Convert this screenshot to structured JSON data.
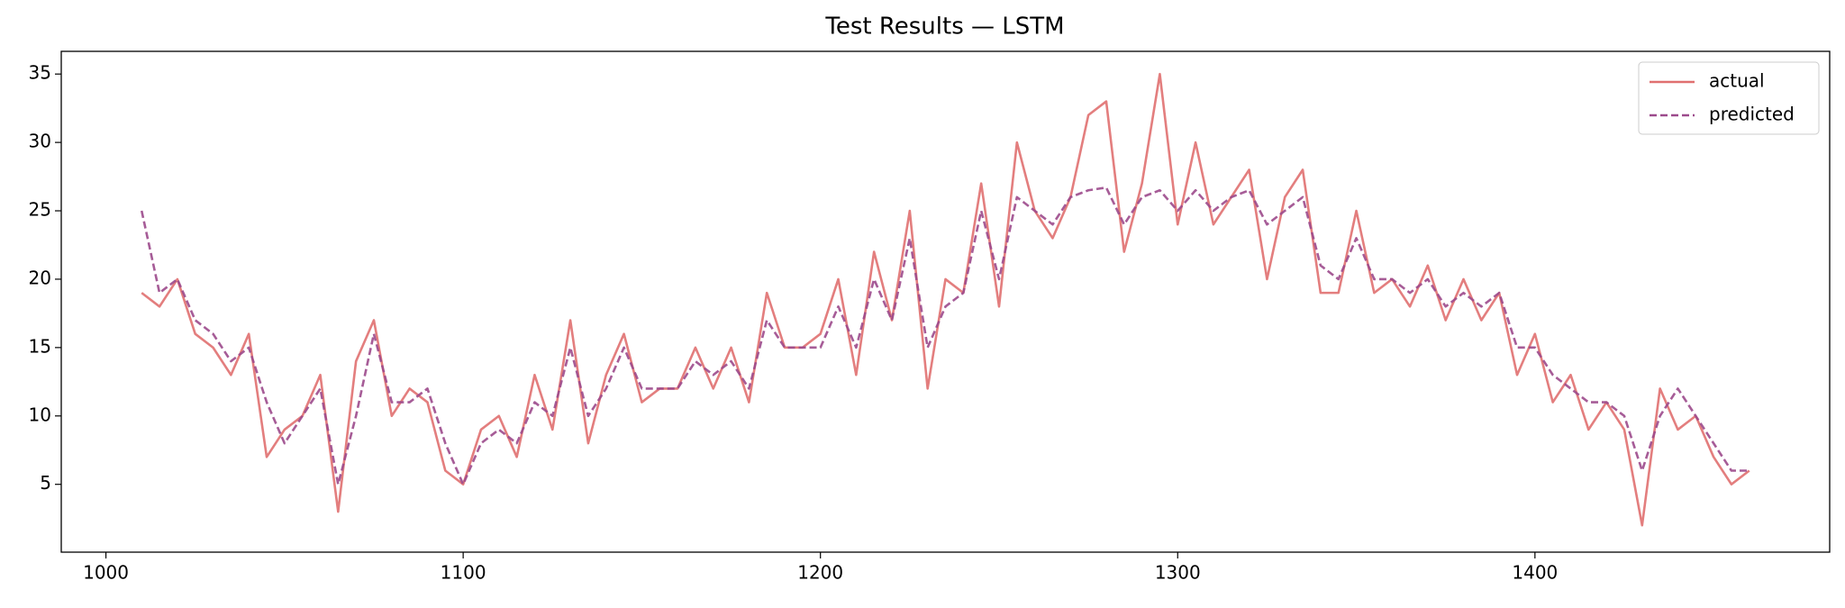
{
  "chart_data": {
    "type": "line",
    "title": "Test Results — LSTM",
    "x": [
      1010,
      1015,
      1020,
      1025,
      1030,
      1035,
      1040,
      1045,
      1050,
      1055,
      1060,
      1065,
      1070,
      1075,
      1080,
      1085,
      1090,
      1095,
      1100,
      1105,
      1110,
      1115,
      1120,
      1125,
      1130,
      1135,
      1140,
      1145,
      1150,
      1155,
      1160,
      1165,
      1170,
      1175,
      1180,
      1185,
      1190,
      1195,
      1200,
      1205,
      1210,
      1215,
      1220,
      1225,
      1230,
      1235,
      1240,
      1245,
      1250,
      1255,
      1260,
      1265,
      1270,
      1275,
      1280,
      1285,
      1290,
      1295,
      1300,
      1305,
      1310,
      1315,
      1320,
      1325,
      1330,
      1335,
      1340,
      1345,
      1350,
      1355,
      1360,
      1365,
      1370,
      1375,
      1380,
      1385,
      1390,
      1395,
      1400,
      1405,
      1410,
      1415,
      1420,
      1425,
      1430,
      1435,
      1440,
      1445,
      1450,
      1455,
      1460
    ],
    "series": [
      {
        "name": "actual",
        "color": "#e07070",
        "linestyle": "solid",
        "values": [
          19,
          18,
          20,
          16,
          15,
          13,
          16,
          7,
          9,
          10,
          13,
          3,
          14,
          17,
          10,
          12,
          11,
          6,
          5,
          9,
          10,
          7,
          13,
          9,
          17,
          8,
          13,
          16,
          11,
          12,
          12,
          15,
          12,
          15,
          11,
          19,
          15,
          15,
          16,
          20,
          13,
          22,
          17,
          25,
          12,
          20,
          19,
          27,
          18,
          30,
          25,
          23,
          26,
          32,
          33,
          22,
          27,
          35,
          24,
          30,
          24,
          26,
          28,
          20,
          26,
          28,
          19,
          19,
          25,
          19,
          20,
          18,
          21,
          17,
          20,
          17,
          19,
          13,
          16,
          11,
          13,
          9,
          11,
          9,
          2,
          12,
          9,
          10,
          7,
          5,
          6
        ]
      },
      {
        "name": "predicted",
        "color": "#9c4a8c",
        "linestyle": "dashed",
        "values": [
          25,
          19,
          20,
          17,
          16,
          14,
          15,
          11,
          8,
          10,
          12,
          5,
          10,
          16,
          11,
          11,
          12,
          8,
          5,
          8,
          9,
          8,
          11,
          10,
          15,
          10,
          12,
          15,
          12,
          12,
          12,
          14,
          13,
          14,
          12,
          17,
          15,
          15,
          15,
          18,
          15,
          20,
          17,
          23,
          15,
          18,
          19,
          25,
          20,
          26,
          25,
          24,
          26,
          26.5,
          26.7,
          24,
          26,
          26.5,
          25,
          26.5,
          25,
          26,
          26.5,
          24,
          25,
          26,
          21,
          20,
          23,
          20,
          20,
          19,
          20,
          18,
          19,
          18,
          19,
          15,
          15,
          13,
          12,
          11,
          11,
          10,
          6,
          10,
          12,
          10,
          8,
          6,
          6
        ]
      }
    ],
    "xlim": [
      987.5,
      1482.5
    ],
    "ylim": [
      0.04,
      36.66
    ],
    "xticks": [
      1000,
      1100,
      1200,
      1300,
      1400
    ],
    "yticks": [
      5,
      10,
      15,
      20,
      25,
      30,
      35
    ],
    "legend": "upper right"
  }
}
